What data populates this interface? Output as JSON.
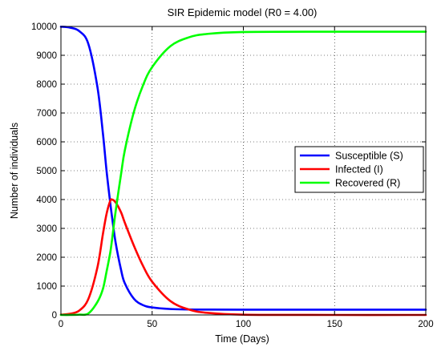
{
  "chart_data": {
    "type": "line",
    "title": "SIR Epidemic model (R0 = 4.00)",
    "xlabel": "Time (Days)",
    "ylabel": "Number of individuals",
    "xlim": [
      0,
      200
    ],
    "ylim": [
      0,
      10000
    ],
    "x_ticks": [
      0,
      50,
      100,
      150,
      200
    ],
    "y_ticks": [
      0,
      1000,
      2000,
      3000,
      4000,
      5000,
      6000,
      7000,
      8000,
      9000,
      10000
    ],
    "grid": "dotted",
    "legend_position": "center-right",
    "x": [
      0,
      5,
      10,
      15,
      20,
      23,
      25,
      27,
      28,
      30,
      33,
      35,
      40,
      45,
      50,
      60,
      70,
      80,
      100,
      150,
      200
    ],
    "series": [
      {
        "name": "Susceptible (S)",
        "color": "#0000ff",
        "values": [
          9990,
          9960,
          9840,
          9400,
          7900,
          6300,
          5000,
          3900,
          3400,
          2500,
          1550,
          1100,
          560,
          340,
          260,
          205,
          190,
          185,
          183,
          182,
          182
        ]
      },
      {
        "name": "Infected (I)",
        "color": "#ff0000",
        "values": [
          10,
          40,
          150,
          550,
          1650,
          2800,
          3500,
          3950,
          4000,
          3900,
          3550,
          3200,
          2400,
          1700,
          1150,
          480,
          190,
          75,
          10,
          0,
          0
        ]
      },
      {
        "name": "Recovered (R)",
        "color": "#00ff00",
        "values": [
          0,
          0,
          10,
          50,
          450,
          900,
          1500,
          2150,
          2600,
          3600,
          4900,
          5700,
          7040,
          7960,
          8590,
          9315,
          9620,
          9740,
          9807,
          9818,
          9818
        ]
      }
    ]
  }
}
